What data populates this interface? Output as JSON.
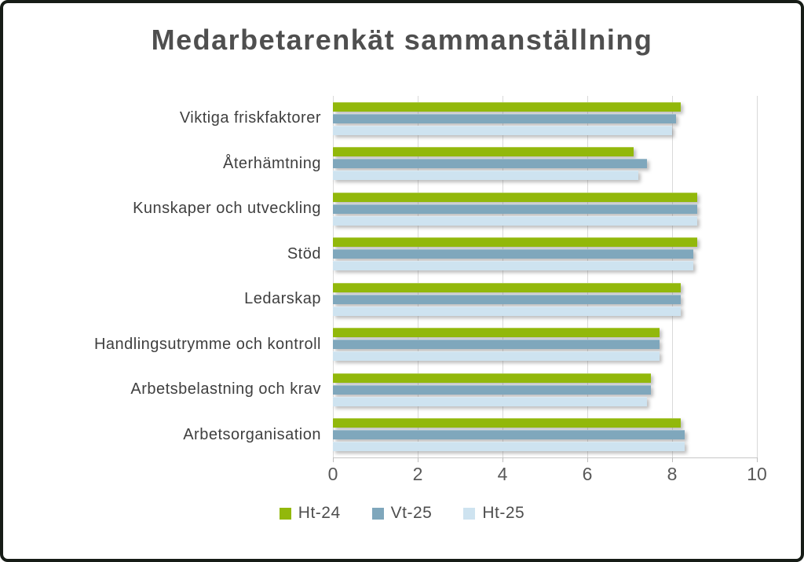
{
  "chart_data": {
    "type": "bar",
    "orientation": "horizontal",
    "title": "Medarbetarenkät sammanställning",
    "categories": [
      "Viktiga friskfaktorer",
      "Återhämtning",
      "Kunskaper och utveckling",
      "Stöd",
      "Ledarskap",
      "Handlingsutrymme och kontroll",
      "Arbetsbelastning och krav",
      "Arbetsorganisation"
    ],
    "series": [
      {
        "name": "Ht-24",
        "color": "#92b80b",
        "values": [
          8.2,
          7.1,
          8.6,
          8.6,
          8.2,
          7.7,
          7.5,
          8.2
        ]
      },
      {
        "name": "Vt-25",
        "color": "#7fa7bc",
        "values": [
          8.1,
          7.4,
          8.6,
          8.5,
          8.2,
          7.7,
          7.5,
          8.3
        ]
      },
      {
        "name": "Ht-25",
        "color": "#cee3f0",
        "values": [
          8.0,
          7.2,
          8.6,
          8.5,
          8.2,
          7.7,
          7.4,
          8.3
        ]
      }
    ],
    "xlim": [
      0,
      10
    ],
    "x_ticks": [
      0,
      2,
      4,
      6,
      8,
      10
    ],
    "grid": "vertical gridlines at each x tick",
    "legend_position": "bottom",
    "axis_text_color": "#585858",
    "label_text_color": "#3f3f3f",
    "title_text_color": "#4f4f4f",
    "gridline_color": "#d9d9d9"
  }
}
